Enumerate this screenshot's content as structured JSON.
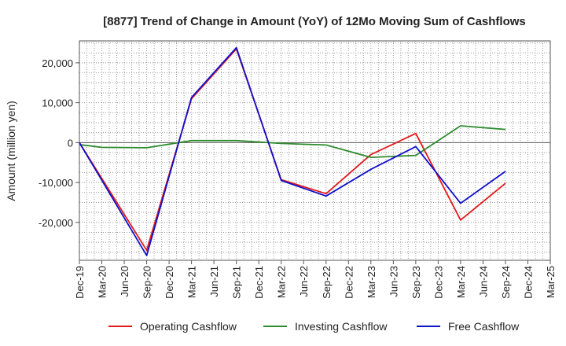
{
  "chart_data": {
    "type": "line",
    "title": "[8877]  Trend of Change in Amount (YoY) of 12Mo Moving Sum of Cashflows",
    "xlabel": "",
    "ylabel": "Amount (million yen)",
    "ylim": [
      -29500,
      25500
    ],
    "yticks": [
      20000,
      10000,
      0,
      -10000,
      -20000
    ],
    "ytick_labels": [
      "20,000",
      "10,000",
      "0",
      "-10,000",
      "-20,000"
    ],
    "categories": [
      "Dec-19",
      "Mar-20",
      "Jun-20",
      "Sep-20",
      "Dec-20",
      "Mar-21",
      "Jun-21",
      "Sep-21",
      "Dec-21",
      "Mar-22",
      "Jun-22",
      "Sep-22",
      "Dec-22",
      "Mar-23",
      "Jun-23",
      "Sep-23",
      "Dec-23",
      "Mar-24",
      "Jun-24",
      "Sep-24",
      "Dec-24",
      "Mar-25"
    ],
    "grid": true,
    "legend_position": "bottom",
    "series": [
      {
        "name": "Operating Cashflow",
        "color": "#e31a1c",
        "values": [
          0,
          null,
          null,
          -27000,
          null,
          11000,
          null,
          23500,
          null,
          -9300,
          null,
          -12800,
          null,
          -3000,
          null,
          2300,
          null,
          -19400,
          null,
          -10200,
          null,
          null
        ]
      },
      {
        "name": "Investing Cashflow",
        "color": "#2e8b2e",
        "values": [
          -500,
          -1200,
          null,
          -1300,
          null,
          500,
          null,
          500,
          null,
          -200,
          null,
          -600,
          null,
          -3700,
          null,
          -3200,
          null,
          4200,
          null,
          3300,
          null,
          null
        ]
      },
      {
        "name": "Free Cashflow",
        "color": "#1010cc",
        "values": [
          0,
          null,
          null,
          -28300,
          null,
          11300,
          null,
          23800,
          null,
          -9500,
          null,
          -13400,
          null,
          -6700,
          null,
          -1000,
          null,
          -15200,
          null,
          -7200,
          null,
          null
        ]
      }
    ]
  }
}
